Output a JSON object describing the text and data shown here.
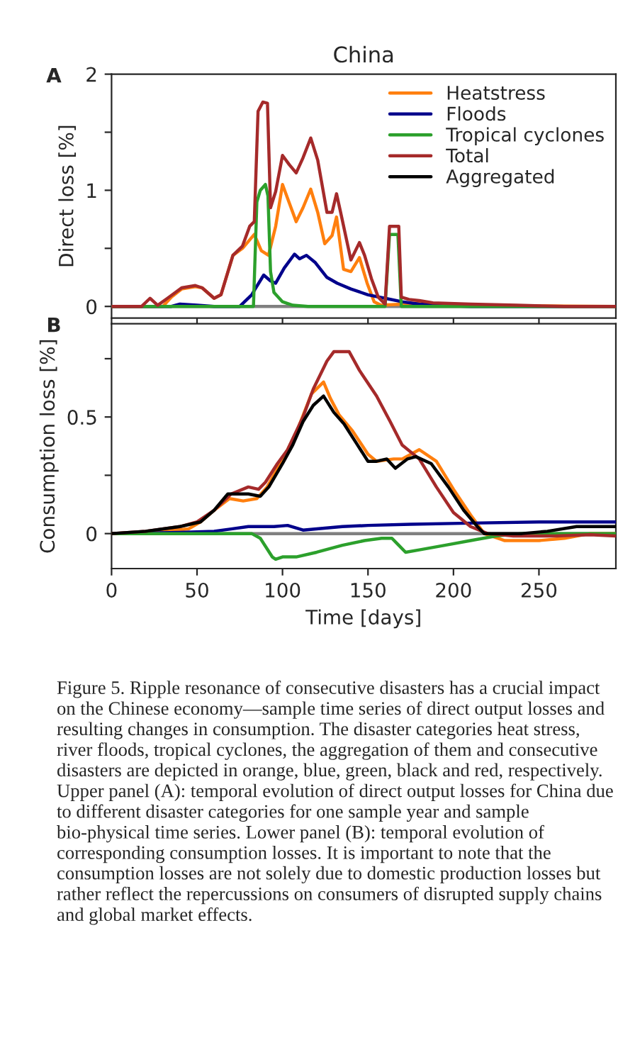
{
  "chart_data": [
    {
      "type": "line",
      "title": "China",
      "ylabel": "Direct loss [%]",
      "annotations": [
        "A"
      ],
      "xlim": [
        0,
        295
      ],
      "ylim": [
        -0.1,
        2
      ],
      "xticks": [
        0,
        50,
        100,
        150,
        200,
        250
      ],
      "yticks": [
        0,
        {
          "value": 0.5,
          "label": null
        },
        1,
        {
          "value": 1.5,
          "label": null
        },
        2
      ],
      "tick_labels": "y",
      "legend": "top right",
      "grid": false,
      "ref_lines": [
        {
          "axis": "y",
          "value": 0,
          "color": "#808080"
        }
      ],
      "series": [
        {
          "name": "Heatstress",
          "color": "#ff7f0e",
          "x": [
            0,
            30,
            35,
            41,
            49,
            53,
            60,
            64,
            71,
            76.6,
            83.5,
            87.6,
            91.8,
            96,
            100,
            104,
            108,
            112,
            116.5,
            120.6,
            124.7,
            129,
            131.6,
            135.7,
            140,
            145,
            149.5,
            153.6,
            157.7,
            170,
            180,
            200,
            295
          ],
          "values": [
            0,
            0,
            0.08,
            0.15,
            0.17,
            0.16,
            0.07,
            0.1,
            0.44,
            0.5,
            0.62,
            0.48,
            0.44,
            0.69,
            1.05,
            0.89,
            0.73,
            0.85,
            1.01,
            0.81,
            0.54,
            0.61,
            0.77,
            0.32,
            0.3,
            0.42,
            0.2,
            0.04,
            0.01,
            0.02,
            0.03,
            0.01,
            0
          ]
        },
        {
          "name": "Floods",
          "color": "#00008b",
          "x": [
            0,
            35,
            40,
            50,
            60,
            75,
            82,
            84,
            89,
            93,
            96,
            101,
            107,
            110,
            114,
            119,
            126,
            132,
            140,
            150,
            160,
            170,
            180,
            190,
            210,
            295
          ],
          "values": [
            0,
            0,
            0.02,
            0.01,
            0,
            0,
            0.1,
            0.15,
            0.27,
            0.22,
            0.2,
            0.33,
            0.45,
            0.41,
            0.44,
            0.38,
            0.25,
            0.2,
            0.15,
            0.1,
            0.07,
            0.04,
            0.02,
            0.01,
            0,
            0
          ]
        },
        {
          "name": "Tropical cyclones",
          "color": "#2ca02c",
          "x": [
            0,
            83,
            85,
            87,
            90,
            91.5,
            93,
            95,
            100,
            106,
            115,
            160,
            162.6,
            167.5,
            169.5,
            295
          ],
          "values": [
            0,
            0,
            0.9,
            1.0,
            1.05,
            0.95,
            0.3,
            0.12,
            0.04,
            0.01,
            0,
            0,
            0.62,
            0.62,
            0,
            0
          ]
        },
        {
          "name": "Total",
          "color": "#a52a2a",
          "x": [
            0,
            17.6,
            22.5,
            27,
            32.7,
            41,
            49,
            53,
            60,
            64,
            71,
            76.6,
            80.8,
            83.5,
            85.7,
            88.5,
            91.2,
            93,
            96,
            100,
            104,
            108,
            112,
            116.5,
            120.6,
            126,
            129,
            131.6,
            134,
            140,
            145,
            148,
            152,
            156,
            160,
            162.6,
            168,
            169.5,
            174,
            180,
            188,
            210,
            237,
            265,
            295
          ],
          "values": [
            0,
            0,
            0.07,
            0.01,
            0.07,
            0.16,
            0.18,
            0.16,
            0.07,
            0.1,
            0.44,
            0.52,
            0.69,
            0.73,
            1.68,
            1.76,
            1.75,
            0.85,
            0.99,
            1.3,
            1.22,
            1.15,
            1.28,
            1.45,
            1.26,
            0.81,
            0.81,
            0.97,
            0.81,
            0.4,
            0.55,
            0.44,
            0.24,
            0.08,
            0.02,
            0.69,
            0.69,
            0.08,
            0.06,
            0.05,
            0.03,
            0.02,
            0.01,
            0,
            0
          ]
        },
        {
          "name": "Aggregated",
          "color": "#000000"
        }
      ]
    },
    {
      "type": "line",
      "xlabel": "Time [days]",
      "ylabel": "Consumption loss [%]",
      "annotations": [
        "B",
        "Figure 5. Ripple resonance of consecutive disasters has a crucial impact on the Chinese economy—sample time series of direct output losses and resulting changes in consumption. The disaster categories heat stress, river floods, tropical cyclones, the aggregation of them and consecutive disasters are depicted in orange, blue, green, black and red, respectively. Upper panel (A): temporal evolution of direct output losses for China due to different disaster categories for one sample year and sample bio-physical time series. Lower panel (B): temporal evolution of corresponding consumption losses. It is important to note that the consumption losses are not solely due to domestic production losses but rather reflect the repercussions on consumers of disrupted supply chains and global market effects."
      ],
      "xlim": [
        0,
        295
      ],
      "ylim": [
        -0.15,
        0.9
      ],
      "xticks": [
        0,
        50,
        100,
        150,
        200,
        250
      ],
      "yticks": [
        0,
        {
          "value": 0.25,
          "label": null
        },
        0.5,
        {
          "value": 0.75,
          "label": null
        }
      ],
      "grid": false,
      "legend": false,
      "ref_lines": [
        {
          "axis": "y",
          "value": 0,
          "color": "#808080"
        }
      ],
      "series": [
        {
          "color": "#ff7f0e",
          "x": [
            0,
            30,
            45,
            52,
            60,
            69,
            77,
            85,
            91,
            101,
            109,
            117,
            124,
            128,
            133,
            141,
            150,
            155,
            165,
            170,
            180,
            190,
            200,
            210,
            218,
            230,
            250,
            265,
            280,
            295
          ],
          "values": [
            0,
            0.01,
            0.02,
            0.05,
            0.1,
            0.15,
            0.14,
            0.15,
            0.2,
            0.33,
            0.45,
            0.6,
            0.65,
            0.58,
            0.51,
            0.44,
            0.34,
            0.31,
            0.32,
            0.32,
            0.36,
            0.31,
            0.19,
            0.08,
            0,
            -0.03,
            -0.03,
            -0.02,
            0,
            0
          ]
        },
        {
          "color": "#00008b",
          "x": [
            0,
            40,
            60,
            70,
            80,
            95,
            103,
            112,
            120,
            135,
            150,
            175,
            210,
            250,
            295
          ],
          "values": [
            0,
            0.005,
            0.01,
            0.02,
            0.03,
            0.03,
            0.035,
            0.015,
            0.02,
            0.03,
            0.035,
            0.04,
            0.045,
            0.05,
            0.05
          ]
        },
        {
          "color": "#2ca02c",
          "x": [
            0,
            82,
            87,
            94,
            96,
            100,
            108,
            120,
            135,
            148,
            158,
            164,
            168,
            172,
            180,
            195,
            210,
            225,
            240,
            295
          ],
          "values": [
            0,
            0,
            -0.02,
            -0.1,
            -0.11,
            -0.1,
            -0.1,
            -0.08,
            -0.05,
            -0.03,
            -0.02,
            -0.02,
            -0.05,
            -0.08,
            -0.07,
            -0.05,
            -0.03,
            -0.01,
            0,
            0
          ]
        },
        {
          "color": "#a52a2a",
          "x": [
            0,
            20,
            40,
            50,
            60,
            70,
            80,
            86,
            90,
            97,
            103,
            112,
            118,
            126,
            130,
            139,
            145,
            155,
            163,
            170,
            180,
            190,
            200,
            210,
            220,
            235,
            260,
            280,
            295
          ],
          "values": [
            0,
            0.01,
            0.03,
            0.05,
            0.1,
            0.17,
            0.2,
            0.19,
            0.22,
            0.3,
            0.36,
            0.5,
            0.62,
            0.74,
            0.78,
            0.78,
            0.7,
            0.59,
            0.48,
            0.38,
            0.32,
            0.2,
            0.09,
            0.03,
            0,
            -0.01,
            -0.01,
            -0.005,
            -0.01
          ]
        },
        {
          "color": "#000000",
          "x": [
            0,
            20,
            40,
            52,
            60,
            68,
            80,
            87,
            92,
            100,
            106,
            112,
            118,
            124,
            130,
            136,
            143,
            150,
            155,
            161,
            166,
            173,
            178,
            187,
            197,
            206,
            214,
            218,
            240,
            255,
            272,
            295
          ],
          "values": [
            0,
            0.01,
            0.03,
            0.05,
            0.1,
            0.17,
            0.17,
            0.16,
            0.2,
            0.3,
            0.38,
            0.48,
            0.55,
            0.59,
            0.52,
            0.47,
            0.39,
            0.31,
            0.31,
            0.32,
            0.28,
            0.32,
            0.33,
            0.3,
            0.2,
            0.1,
            0.03,
            0,
            0,
            0.01,
            0.03,
            0.03
          ]
        }
      ]
    }
  ]
}
